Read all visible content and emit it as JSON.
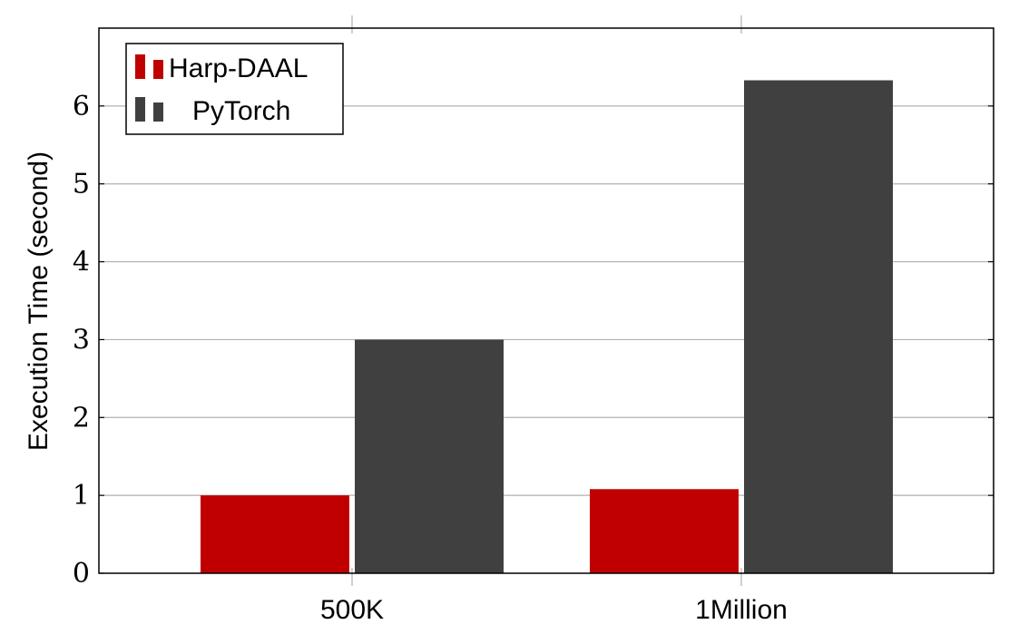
{
  "chart_data": {
    "type": "bar",
    "categories": [
      "500K",
      "1Million"
    ],
    "series": [
      {
        "name": "Harp-DAAL",
        "values": [
          1.0,
          1.08
        ],
        "color": "#c00000"
      },
      {
        "name": "PyTorch",
        "values": [
          3.0,
          6.33
        ],
        "color": "#404040"
      }
    ],
    "ylabel": "Execution Time (second)",
    "xlabel": "",
    "ylim": [
      0,
      7
    ],
    "yticks": [
      0,
      1,
      2,
      3,
      4,
      5,
      6
    ],
    "grid": "y-major",
    "legend_position": "top-left"
  }
}
